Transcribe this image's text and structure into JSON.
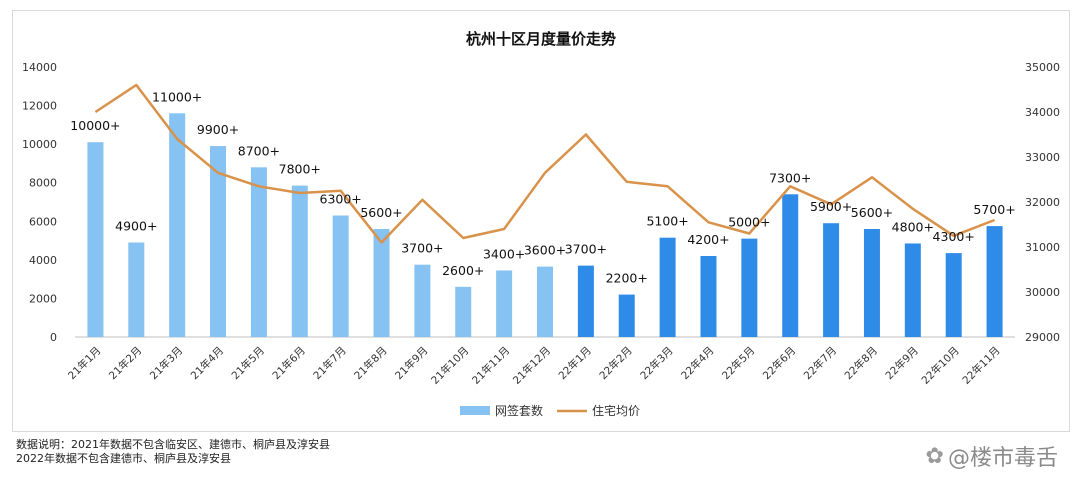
{
  "chart_data": {
    "type": "bar+line",
    "title": "杭州十区月度量价走势",
    "categories": [
      "21年1月",
      "21年2月",
      "21年3月",
      "21年4月",
      "21年5月",
      "21年6月",
      "21年7月",
      "21年8月",
      "21年9月",
      "21年10月",
      "21年11月",
      "21年12月",
      "22年1月",
      "22年2月",
      "22年3月",
      "22年4月",
      "22年5月",
      "22年6月",
      "22年7月",
      "22年8月",
      "22年9月",
      "22年10月",
      "22年11月"
    ],
    "series": [
      {
        "name": "网签套数",
        "type": "bar",
        "axis": "left",
        "values": [
          10100,
          4900,
          11600,
          9900,
          8800,
          7850,
          6300,
          5600,
          3750,
          2600,
          3450,
          3650,
          3700,
          2200,
          5150,
          4200,
          5100,
          7400,
          5900,
          5600,
          4850,
          4350,
          5750
        ],
        "data_labels": [
          "10000+",
          "4900+",
          "11000+",
          "9900+",
          "8700+",
          "7800+",
          "6300+",
          "5600+",
          "3700+",
          "2600+",
          "3400+",
          "3600+",
          "3700+",
          "2200+",
          "5100+",
          "4200+",
          "5000+",
          "7300+",
          "5900+",
          "5600+",
          "4800+",
          "4300+",
          "5700+"
        ],
        "colors": [
          "#86c2f2",
          "#86c2f2",
          "#86c2f2",
          "#86c2f2",
          "#86c2f2",
          "#86c2f2",
          "#86c2f2",
          "#86c2f2",
          "#86c2f2",
          "#86c2f2",
          "#86c2f2",
          "#86c2f2",
          "#2f8be8",
          "#2f8be8",
          "#2f8be8",
          "#2f8be8",
          "#2f8be8",
          "#2f8be8",
          "#2f8be8",
          "#2f8be8",
          "#2f8be8",
          "#2f8be8",
          "#2f8be8"
        ]
      },
      {
        "name": "住宅均价",
        "type": "line",
        "axis": "right",
        "color": "#d9924a",
        "values": [
          34000,
          34600,
          33400,
          32650,
          32350,
          32200,
          32250,
          31100,
          32050,
          31200,
          31400,
          32650,
          33500,
          32450,
          32350,
          31550,
          31300,
          32350,
          31950,
          32550,
          31850,
          31250,
          31600
        ]
      }
    ],
    "left_axis": {
      "min": 0,
      "max": 14000,
      "ticks": [
        "0",
        "2000",
        "4000",
        "6000",
        "8000",
        "10000",
        "12000",
        "14000"
      ]
    },
    "right_axis": {
      "min": 29000,
      "max": 35000,
      "ticks": [
        "29000",
        "30000",
        "31000",
        "32000",
        "33000",
        "34000",
        "35000"
      ]
    },
    "grid": false,
    "legend": "bottom",
    "legend_items": [
      {
        "label": "网签套数",
        "color": "#86c2f2",
        "shape": "rect"
      },
      {
        "label": "住宅均价",
        "color": "#d9924a",
        "shape": "line"
      }
    ]
  },
  "notes": {
    "line1": "数据说明：2021年数据不包含临安区、建德市、桐庐县及淳安县",
    "line2": "2022年数据不包含建德市、桐庐县及淳安县"
  },
  "watermark": {
    "icon": "paw-icon",
    "text": "@楼市毒舌"
  }
}
